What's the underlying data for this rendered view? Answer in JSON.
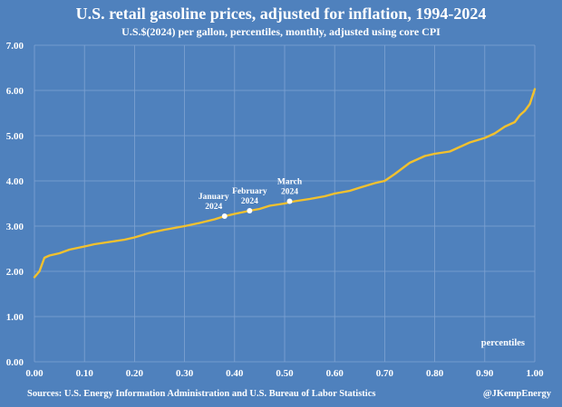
{
  "chart_data": {
    "type": "line",
    "title": "U.S. retail gasoline prices, adjusted for inflation, 1994-2024",
    "subtitle": "U.S.$(2024) per gallon, percentiles, monthly, adjusted using core CPI",
    "xlabel": "percentiles",
    "ylabel": "",
    "xlim": [
      0,
      1
    ],
    "ylim": [
      0,
      7
    ],
    "x_ticks": [
      "0.00",
      "0.10",
      "0.20",
      "0.30",
      "0.40",
      "0.50",
      "0.60",
      "0.70",
      "0.80",
      "0.90",
      "1.00"
    ],
    "y_ticks": [
      "0.00",
      "1.00",
      "2.00",
      "3.00",
      "4.00",
      "5.00",
      "6.00",
      "7.00"
    ],
    "grid": true,
    "line_color": "#f2c12e",
    "background_color": "#4f81bd",
    "series": [
      {
        "name": "",
        "x": [
          0.0,
          0.01,
          0.02,
          0.03,
          0.05,
          0.07,
          0.1,
          0.12,
          0.15,
          0.18,
          0.2,
          0.23,
          0.26,
          0.3,
          0.33,
          0.36,
          0.38,
          0.4,
          0.43,
          0.45,
          0.47,
          0.5,
          0.52,
          0.55,
          0.58,
          0.6,
          0.63,
          0.65,
          0.68,
          0.7,
          0.72,
          0.75,
          0.78,
          0.8,
          0.83,
          0.85,
          0.87,
          0.9,
          0.92,
          0.94,
          0.96,
          0.97,
          0.98,
          0.99,
          1.0
        ],
        "values": [
          1.87,
          2.0,
          2.3,
          2.35,
          2.4,
          2.48,
          2.55,
          2.6,
          2.65,
          2.7,
          2.75,
          2.85,
          2.92,
          3.0,
          3.07,
          3.15,
          3.22,
          3.27,
          3.34,
          3.38,
          3.45,
          3.5,
          3.55,
          3.6,
          3.66,
          3.72,
          3.78,
          3.85,
          3.95,
          4.0,
          4.15,
          4.4,
          4.55,
          4.6,
          4.65,
          4.75,
          4.85,
          4.95,
          5.05,
          5.2,
          5.3,
          5.45,
          5.55,
          5.7,
          6.03
        ]
      }
    ],
    "annotations": [
      {
        "label_lines": [
          "January",
          "2024"
        ],
        "x": 0.38,
        "y": 3.22
      },
      {
        "label_lines": [
          "February",
          "2024"
        ],
        "x": 0.43,
        "y": 3.34
      },
      {
        "label_lines": [
          "March",
          "2024"
        ],
        "x": 0.51,
        "y": 3.55
      }
    ],
    "source": "Sources: U.S. Energy Information Administration and U.S. Bureau of Labor Statistics",
    "credit": "@JKempEnergy"
  }
}
